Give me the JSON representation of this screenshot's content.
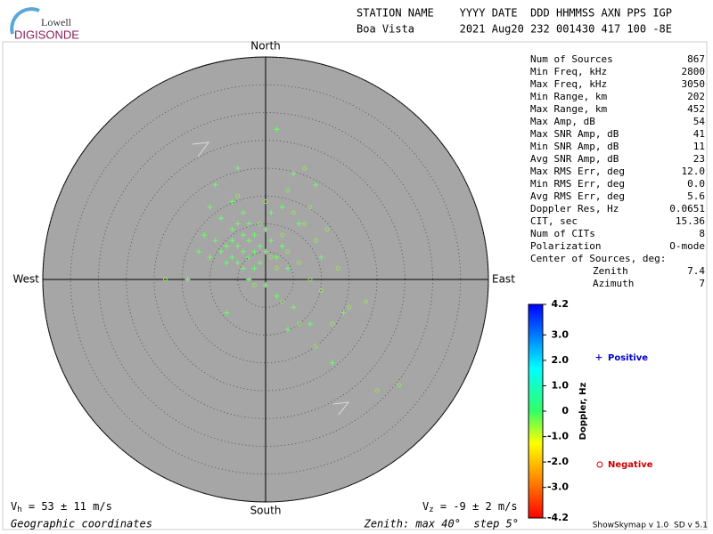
{
  "logo": {
    "top": "Lowell",
    "bottom": "DIGISONDE"
  },
  "header": {
    "line1": "STATION NAME    YYYY DATE  DDD HHMMSS AXN PPS IGP",
    "line2": "Boa Vista       2021 Aug20 232 001430 417 100 -8E"
  },
  "stats": [
    [
      "Num of Sources",
      "867"
    ],
    [
      "Min Freq, kHz",
      "2800"
    ],
    [
      "Max Freq, kHz",
      "3050"
    ],
    [
      "Min Range, km",
      "202"
    ],
    [
      "Max Range, km",
      "452"
    ],
    [
      "Max Amp, dB",
      "54"
    ],
    [
      "Max SNR Amp, dB",
      "41"
    ],
    [
      "Min SNR Amp, dB",
      "11"
    ],
    [
      "Avg SNR Amp, dB",
      "23"
    ],
    [
      "Max RMS Err, deg",
      "12.0"
    ],
    [
      "Min RMS Err, deg",
      "0.0"
    ],
    [
      "Avg RMS Err, deg",
      "5.6"
    ],
    [
      "Doppler Res, Hz",
      "0.0651"
    ],
    [
      "CIT, sec",
      "15.36"
    ],
    [
      "Num of CITs",
      "8"
    ],
    [
      "Polarization",
      "O-mode"
    ]
  ],
  "center": {
    "title": "Center of Sources, deg:",
    "rows": [
      [
        "Zenith",
        "7.4"
      ],
      [
        "Azimuth",
        "7"
      ]
    ]
  },
  "chart_data": {
    "type": "scatter",
    "directions": {
      "north": "North",
      "south": "South",
      "west": "West",
      "east": "East"
    },
    "xlim": [
      -40,
      40
    ],
    "ylim": [
      -40,
      40
    ],
    "rticks": [
      5,
      10,
      15,
      20,
      25,
      30,
      35,
      40
    ],
    "series": [
      {
        "name": "Positive",
        "marker": "plus",
        "color": "#66ff66",
        "legend_color": "#0000cc",
        "x": [
          -5,
          -4,
          -3,
          -6,
          -2,
          -7,
          -4,
          -1,
          -5,
          -3,
          -8,
          -2,
          -6,
          0,
          -4,
          -9,
          -3,
          -1,
          -7,
          1,
          -5,
          -10,
          -2,
          0,
          2,
          -6,
          -11,
          -8,
          -4,
          1,
          3,
          -12,
          -3,
          0,
          4,
          -6,
          -9,
          2,
          5,
          8,
          12,
          -7,
          -14,
          3,
          9,
          4,
          14,
          10,
          6,
          -10,
          5,
          2,
          -5
        ],
        "y": [
          6,
          5,
          7,
          4,
          5,
          6,
          8,
          6,
          3,
          4,
          5,
          8,
          7,
          5,
          2,
          7,
          10,
          3,
          3,
          7,
          10,
          4,
          2,
          9,
          4,
          9,
          8,
          11,
          12,
          12,
          6,
          5,
          0,
          -1,
          2,
          14,
          17,
          -3,
          -5,
          -8,
          -15,
          -6,
          0,
          13,
          17,
          -9,
          -6,
          4,
          10,
          13,
          19,
          27,
          20
        ]
      },
      {
        "name": "Negative",
        "marker": "circle",
        "color": "#99dd66",
        "legend_color": "#cc0000",
        "x": [
          1,
          3,
          5,
          7,
          9,
          2,
          4,
          6,
          8,
          -1,
          10,
          12,
          15,
          20,
          24,
          6,
          3,
          11,
          7,
          -5,
          18,
          13,
          9,
          -2,
          0,
          -18,
          4,
          8
        ],
        "y": [
          4,
          8,
          12,
          10,
          7,
          2,
          5,
          3,
          13,
          10,
          -2,
          -8,
          -5,
          -20,
          -19,
          -8,
          -4,
          9,
          20,
          15,
          -4,
          2,
          -12,
          -1,
          14,
          0,
          16,
          0
        ]
      }
    ],
    "colorbar": {
      "label": "Doppler, Hz",
      "lim": [
        -4.2,
        4.2
      ],
      "ticks": [
        4.2,
        {
          "value": 3,
          "label": "3.0"
        },
        {
          "value": 2,
          "label": "2.0"
        },
        {
          "value": 1,
          "label": "1.0"
        },
        0,
        {
          "value": -1,
          "label": "-1.0"
        },
        {
          "value": -2,
          "label": "-2.0"
        },
        {
          "value": -3,
          "label": "-3.0"
        },
        -4.2
      ]
    }
  },
  "footer": {
    "vh": {
      "symbol": "V",
      "sub": "h",
      "text": " = 53 ± 11 m/s"
    },
    "vz": {
      "symbol": "V",
      "sub": "z",
      "text": " = -9 ± 2 m/s"
    },
    "coords": "Geographic coordinates",
    "zenith": "Zenith: max 40°  step 5°",
    "version": "ShowSkymap v 1.0  SD v 5.1"
  }
}
